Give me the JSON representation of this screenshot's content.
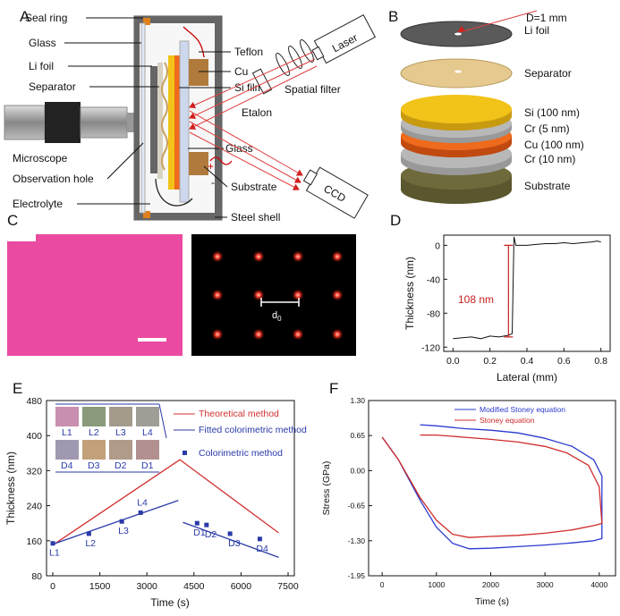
{
  "panels": {
    "a": {
      "letter": "A",
      "labels": {
        "seal_ring": "Seal ring",
        "glass_top": "Glass",
        "li_foil": "Li foil",
        "separator": "Separator",
        "microscope": "Microscope",
        "observation_hole": "Observation hole",
        "electrolyte": "Electrolyte",
        "teflon": "Teflon",
        "cu": "Cu",
        "si_film": "Si film",
        "glass_bottom": "Glass",
        "substrate": "Substrate",
        "steel_shell": "Steel shell",
        "etalon": "Etalon",
        "spatial_filter": "Spatial filter",
        "laser": "Laser",
        "ccd": "CCD",
        "plus": "+",
        "minus": "-"
      }
    },
    "b": {
      "letter": "B",
      "layers": [
        {
          "label": "D=1 mm",
          "color": "#5a5a5a"
        },
        {
          "label": "Li foil",
          "color": "#5a5a5a"
        },
        {
          "label": "Separator",
          "color": "#e6c98e"
        },
        {
          "label": "Si (100 nm)",
          "color": "#f2c318"
        },
        {
          "label": "Cr (5 nm)",
          "color": "#b8b8b8"
        },
        {
          "label": "Cu (100 nm)",
          "color": "#ee6a1c"
        },
        {
          "label": "Cr (10 nm)",
          "color": "#b8b8b8"
        },
        {
          "label": "Substrate",
          "color": "#6e6a3c"
        }
      ]
    },
    "c": {
      "letter": "C",
      "pattern_label": "d",
      "pattern_sub": "0",
      "film_color": "#ea4aa0",
      "spot_color": "#ff3a2a"
    },
    "d": {
      "letter": "D",
      "chart_data": {
        "type": "line",
        "xlabel": "Lateral (mm)",
        "ylabel": "Thickness (nm)",
        "xlim": [
          -0.05,
          0.85
        ],
        "ylim": [
          -125,
          12
        ],
        "xticks": [
          "0.0",
          "0.2",
          "0.4",
          "0.6",
          "0.8"
        ],
        "yticks": [
          "0",
          "-40",
          "-80",
          "-120"
        ],
        "step_annotation": "108  nm",
        "x": [
          0.0,
          0.05,
          0.1,
          0.15,
          0.2,
          0.25,
          0.3,
          0.32,
          0.33,
          0.34,
          0.35,
          0.4,
          0.45,
          0.5,
          0.55,
          0.6,
          0.65,
          0.7,
          0.75,
          0.78,
          0.8
        ],
        "y": [
          -110,
          -109,
          -108,
          -110,
          -107,
          -108,
          -106,
          -104,
          10,
          0,
          0,
          0,
          1,
          2,
          2,
          3,
          2,
          3,
          4,
          5,
          4
        ]
      }
    },
    "e": {
      "letter": "E",
      "swatch_labels_top": [
        "L1",
        "L2",
        "L3",
        "L4"
      ],
      "swatch_labels_bottom": [
        "D4",
        "D3",
        "D2",
        "D1"
      ],
      "swatch_colors_top": [
        "#c98fb0",
        "#8a9a7a",
        "#a39a8c",
        "#9e9e96"
      ],
      "swatch_colors_bottom": [
        "#a098b0",
        "#c2a07a",
        "#b09a88",
        "#b39090"
      ],
      "chart_data": {
        "type": "line",
        "xlabel": "Time (s)",
        "ylabel": "Thickness (nm)",
        "xlim": [
          -200,
          7700
        ],
        "ylim": [
          80,
          480
        ],
        "xticks": [
          "0",
          "1500",
          "3000",
          "4500",
          "6000",
          "7500"
        ],
        "yticks": [
          "80",
          "160",
          "240",
          "320",
          "400",
          "480"
        ],
        "series": [
          {
            "name": "Theoretical method",
            "color": "#d03030",
            "x": [
              0,
              4050,
              7200
            ],
            "y": [
              150,
              345,
              178
            ]
          },
          {
            "name": "Fitted colorimetric method",
            "color": "#2a3aa8",
            "x": [
              0,
              4000,
              4150,
              7200
            ],
            "y": [
              152,
              252,
              202,
              122
            ]
          },
          {
            "name": "Colorimetric method",
            "color": "#2a3aa8",
            "x": [
              0,
              1150,
              2200,
              2800,
              4600,
              4900,
              5650,
              6600
            ],
            "y": [
              154,
              176,
              204,
              224,
              200,
              196,
              176,
              164
            ]
          }
        ],
        "point_labels": [
          "L1",
          "L2",
          "L3",
          "L4",
          "D1",
          "D2",
          "D3",
          "D4"
        ]
      }
    },
    "f": {
      "letter": "F",
      "chart_data": {
        "type": "line",
        "xlabel": "Time (s)",
        "ylabel": "Stress (GPa)",
        "xlim": [
          -250,
          4300
        ],
        "ylim": [
          -1.95,
          1.3
        ],
        "xticks": [
          "0",
          "1000",
          "2000",
          "3000",
          "4000"
        ],
        "yticks": [
          "1.30",
          "0.65",
          "0.00",
          "-0.65",
          "-1.30",
          "-1.95"
        ],
        "series": [
          {
            "name": "Modified Stoney equation",
            "color": "#2a3ad0",
            "x": [
              0,
              300,
              700,
              1000,
              1300,
              1600,
              2000,
              2500,
              3000,
              3500,
              3900,
              4050,
              4050,
              3900,
              3500,
              3000,
              2500,
              2000,
              1500,
              1000,
              700
            ],
            "y": [
              0.62,
              0.2,
              -0.55,
              -1.05,
              -1.35,
              -1.45,
              -1.44,
              -1.41,
              -1.38,
              -1.34,
              -1.3,
              -1.26,
              -0.1,
              0.2,
              0.45,
              0.6,
              0.7,
              0.75,
              0.78,
              0.83,
              0.85
            ]
          },
          {
            "name": "Stoney equation",
            "color": "#d02a2a",
            "x": [
              0,
              300,
              700,
              1000,
              1300,
              1600,
              2000,
              2500,
              3000,
              3500,
              3900,
              4050,
              4000,
              3800,
              3400,
              3000,
              2500,
              2000,
              1500,
              1000,
              700
            ],
            "y": [
              0.62,
              0.2,
              -0.5,
              -0.92,
              -1.18,
              -1.24,
              -1.22,
              -1.2,
              -1.16,
              -1.1,
              -1.02,
              -0.98,
              -0.3,
              0.1,
              0.33,
              0.45,
              0.53,
              0.58,
              0.62,
              0.66,
              0.66
            ]
          }
        ]
      }
    }
  }
}
